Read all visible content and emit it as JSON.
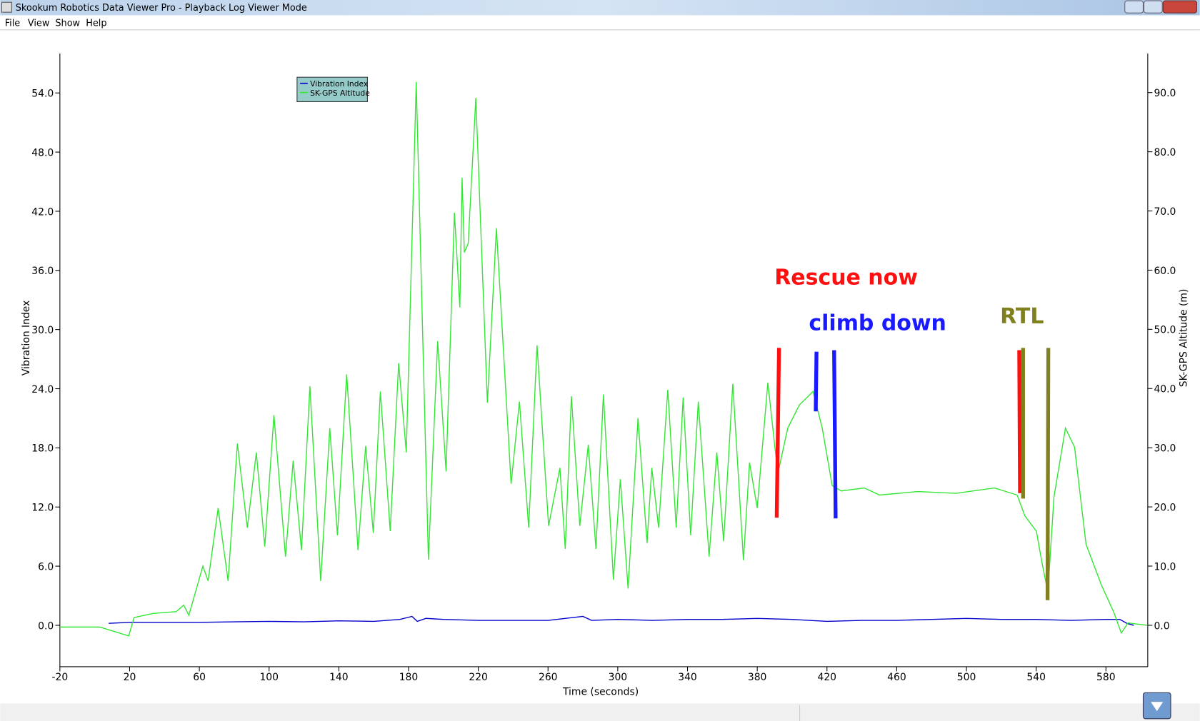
{
  "window": {
    "title": "Skookum Robotics Data Viewer Pro - Playback Log Viewer Mode",
    "menu": [
      "File",
      "View",
      "Show",
      "Help"
    ]
  },
  "chart_data": {
    "type": "line",
    "xlabel": "Time (seconds)",
    "ylabel": "Vibration Index",
    "y2label": "SK-GPS Altitude (m)",
    "xlim": [
      -20,
      604
    ],
    "xticks": [
      -20,
      20,
      60,
      100,
      140,
      180,
      220,
      260,
      300,
      340,
      380,
      420,
      460,
      500,
      540,
      580
    ],
    "ylim": [
      -4.2,
      58
    ],
    "yticks": [
      {
        "value": 0,
        "label": "0.0"
      },
      {
        "value": 6,
        "label": "6.0"
      },
      {
        "value": 12,
        "label": "12.0"
      },
      {
        "value": 18,
        "label": "18.0"
      },
      {
        "value": 24,
        "label": "24.0"
      },
      {
        "value": 30,
        "label": "30.0"
      },
      {
        "value": 36,
        "label": "36.0"
      },
      {
        "value": 42,
        "label": "42.0"
      },
      {
        "value": 48,
        "label": "48.0"
      },
      {
        "value": 54,
        "label": "54.0"
      }
    ],
    "y2lim": [
      -7,
      96.6
    ],
    "y2ticks": [
      {
        "value": 0,
        "label": "0.0"
      },
      {
        "value": 10,
        "label": "10.0"
      },
      {
        "value": 20,
        "label": "20.0"
      },
      {
        "value": 30,
        "label": "30.0"
      },
      {
        "value": 40,
        "label": "40.0"
      },
      {
        "value": 50,
        "label": "50.0"
      },
      {
        "value": 60,
        "label": "60.0"
      },
      {
        "value": 70,
        "label": "70.0"
      },
      {
        "value": 80,
        "label": "80.0"
      },
      {
        "value": 90,
        "label": "90.0"
      }
    ],
    "legend": "upper-left",
    "series": [
      {
        "name": "Vibration Index",
        "color": "#0000cc",
        "x": [
          8,
          20,
          40,
          60,
          80,
          100,
          120,
          140,
          160,
          175,
          182,
          185,
          190,
          200,
          220,
          240,
          260,
          280,
          285,
          300,
          320,
          340,
          360,
          380,
          400,
          420,
          440,
          460,
          480,
          500,
          520,
          540,
          560,
          580,
          588,
          592,
          596
        ],
        "values": [
          0.2,
          0.3,
          0.3,
          0.3,
          0.35,
          0.4,
          0.35,
          0.45,
          0.4,
          0.6,
          0.9,
          0.4,
          0.7,
          0.6,
          0.5,
          0.5,
          0.5,
          0.9,
          0.5,
          0.6,
          0.5,
          0.6,
          0.6,
          0.7,
          0.6,
          0.4,
          0.5,
          0.5,
          0.6,
          0.7,
          0.6,
          0.6,
          0.5,
          0.6,
          0.6,
          0.2,
          0.0
        ]
      },
      {
        "name": "SK-GPS Altitude",
        "color": "#33e633",
        "axis": "y2",
        "x": [
          -20,
          2.8,
          19.5,
          22.5,
          33.5,
          46.7,
          51,
          54,
          62,
          65,
          70.8,
          76.5,
          81.8,
          87.5,
          92.7,
          97.5,
          102.8,
          109.4,
          113.8,
          118.6,
          123.4,
          129.6,
          134.8,
          139.2,
          144.5,
          151,
          155.4,
          159.8,
          163.8,
          169.5,
          174.3,
          178.7,
          184.4,
          191.4,
          196.7,
          201.5,
          206.3,
          209.4,
          210.7,
          212,
          214.2,
          218.6,
          225.2,
          230.4,
          238.8,
          243.6,
          248.9,
          253.7,
          260.3,
          266.8,
          269.9,
          273.4,
          278.2,
          283.1,
          287.5,
          291.8,
          297.5,
          301.5,
          305.9,
          311.6,
          316.8,
          319.5,
          323.4,
          328.7,
          333.5,
          337.5,
          341.8,
          346.2,
          352.4,
          356.8,
          360.7,
          366,
          372.1,
          375.6,
          380,
          386.1,
          391.8,
          397.5,
          404.1,
          412,
          417.3,
          423,
          428.2,
          441.4,
          450.2,
          472.1,
          494,
          516,
          529.1,
          533.5,
          540.1,
          543.6,
          546.7,
          550.2,
          556.8,
          562,
          568.6,
          577.4,
          584.4,
          588.8,
          592.7,
          603.7
        ],
        "values": [
          -0.3,
          -0.3,
          -1.8,
          1.3,
          2,
          2.3,
          3.4,
          1.7,
          10,
          7.5,
          19.8,
          7.5,
          30.7,
          16.5,
          29.2,
          13.3,
          35.5,
          11.6,
          27.8,
          12.7,
          40.4,
          7.5,
          33.3,
          15.2,
          42.4,
          12.7,
          30.3,
          15.6,
          39.5,
          15.9,
          44.3,
          29.2,
          91.8,
          11.1,
          48,
          26,
          69.7,
          53.7,
          75.6,
          63,
          64.5,
          89.1,
          37.6,
          67.1,
          23.9,
          37.8,
          16.5,
          47.3,
          16.8,
          26.6,
          12.9,
          38.7,
          16.8,
          30.5,
          12.9,
          39,
          7.7,
          24.7,
          6.2,
          35,
          13.9,
          26.6,
          16.5,
          39.8,
          16.5,
          38.5,
          15.2,
          37.8,
          11.6,
          29.2,
          14.2,
          40.8,
          11,
          27.5,
          19.8,
          41,
          25.6,
          33.3,
          37.2,
          39.5,
          33.3,
          23.6,
          22.7,
          23.2,
          22,
          22.6,
          22.3,
          23.2,
          22,
          18.5,
          15.9,
          10.1,
          5.6,
          21.7,
          33.3,
          30.1,
          13.7,
          6.8,
          2.3,
          -1.3,
          0.4,
          0
        ]
      }
    ],
    "annotations": [
      {
        "text": "Rescue now",
        "color": "#ff1010"
      },
      {
        "text": "climb down",
        "color": "#1a1aff"
      },
      {
        "text": "RTL",
        "color": "#808020"
      }
    ]
  }
}
